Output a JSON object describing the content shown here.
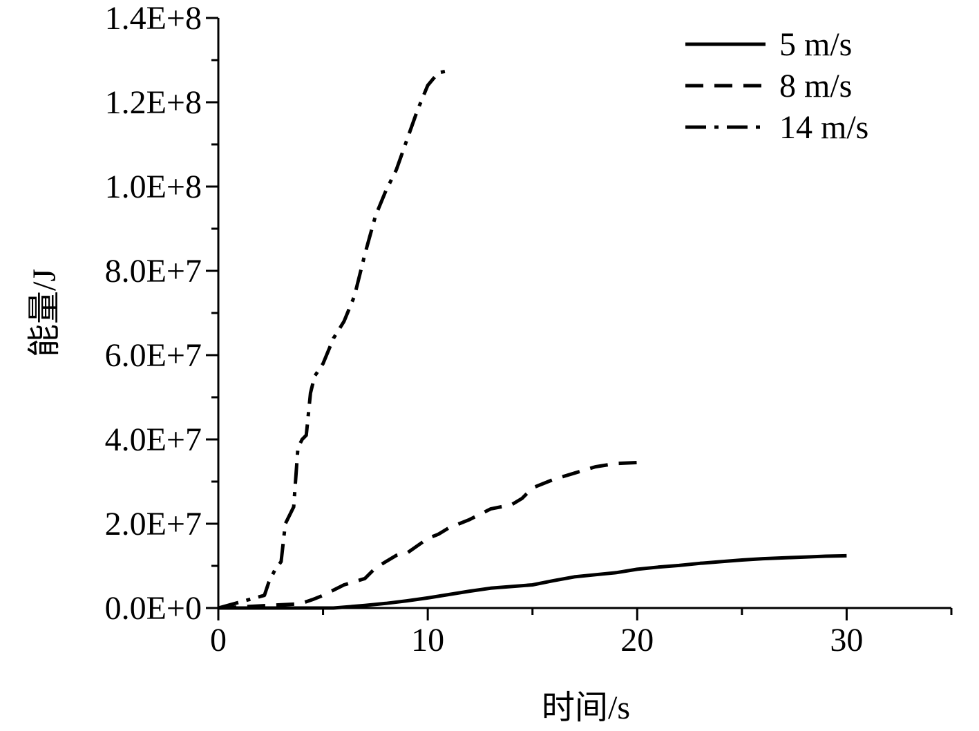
{
  "chart_data": {
    "type": "line",
    "xlabel": "时间/s",
    "ylabel": "能量/J",
    "xlim": [
      0,
      35
    ],
    "ylim": [
      0,
      140000000
    ],
    "x_ticks": [
      0,
      10,
      20,
      30
    ],
    "x_tick_labels": [
      "0",
      "10",
      "20",
      "30"
    ],
    "y_ticks": [
      0,
      20000000,
      40000000,
      60000000,
      80000000,
      100000000,
      120000000,
      140000000
    ],
    "y_tick_labels": [
      "0.0E+0",
      "2.0E+7",
      "4.0E+7",
      "6.0E+7",
      "8.0E+7",
      "1.0E+8",
      "1.2E+8",
      "1.4E+8"
    ],
    "grid": false,
    "legend_position": "top-right",
    "series": [
      {
        "name": "5 m/s",
        "style": "solid",
        "x": [
          0,
          5.5,
          7,
          8,
          9,
          10,
          11,
          12,
          13,
          14,
          15,
          16,
          17,
          18,
          19,
          20,
          21,
          22,
          23,
          24,
          25,
          26,
          27,
          28,
          29,
          30
        ],
        "y": [
          0,
          0,
          600000,
          1100000,
          1700000,
          2400000,
          3200000,
          4000000,
          4700000,
          5100000,
          5500000,
          6500000,
          7400000,
          7900000,
          8400000,
          9200000,
          9700000,
          10100000,
          10600000,
          11000000,
          11400000,
          11700000,
          11900000,
          12100000,
          12300000,
          12400000
        ]
      },
      {
        "name": "8 m/s",
        "style": "dashed",
        "x": [
          0,
          3.9,
          4.5,
          5,
          6,
          7,
          7.5,
          8,
          8.5,
          9,
          10,
          10.5,
          11,
          12,
          13,
          14,
          14.5,
          15,
          16,
          17,
          18,
          19,
          20
        ],
        "y": [
          0,
          1000000,
          2000000,
          3000000,
          5500000,
          7000000,
          9500000,
          11000000,
          12500000,
          13000000,
          16500000,
          17500000,
          19000000,
          21000000,
          23500000,
          24500000,
          26000000,
          28500000,
          30500000,
          32000000,
          33500000,
          34300000,
          34500000
        ]
      },
      {
        "name": "14 m/s",
        "style": "dashdot",
        "x": [
          0,
          2.2,
          2.4,
          2.7,
          3,
          3.2,
          3.4,
          3.6,
          3.8,
          4,
          4.2,
          4.4,
          4.6,
          5,
          5.5,
          6,
          6.5,
          7,
          7.5,
          8,
          8.5,
          9,
          9.5,
          10,
          10.5,
          11
        ],
        "y": [
          0,
          3000000,
          6000000,
          9000000,
          11000000,
          20000000,
          22000000,
          24000000,
          38000000,
          40000000,
          41000000,
          51000000,
          55000000,
          58000000,
          64000000,
          68000000,
          74000000,
          84000000,
          93000000,
          99000000,
          104000000,
          111000000,
          118000000,
          124000000,
          127000000,
          127500000
        ]
      }
    ]
  }
}
